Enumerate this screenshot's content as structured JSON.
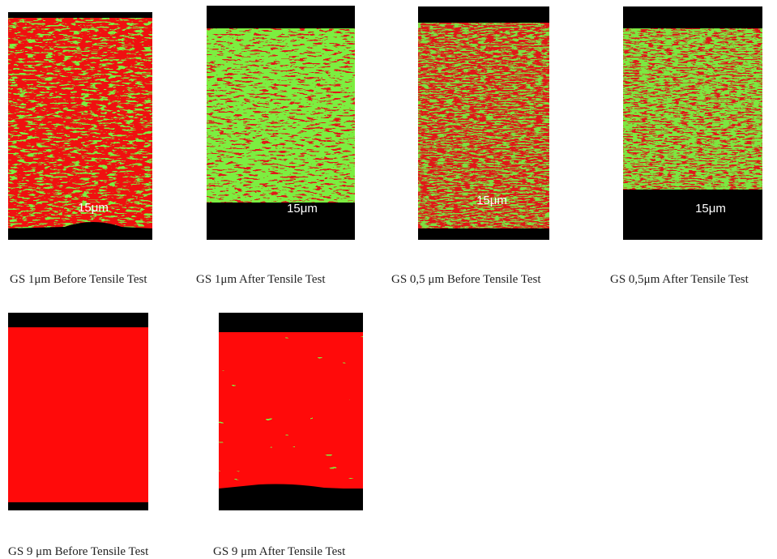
{
  "panels": [
    {
      "caption": "GS 1μm Before Tensile Test",
      "scale_label": "15μm"
    },
    {
      "caption": "GS 1μm After Tensile Test",
      "scale_label": "15μm"
    },
    {
      "caption": "GS 0,5 μm Before Tensile Test",
      "scale_label": "15μm"
    },
    {
      "caption": "GS 0,5μm After Tensile Test",
      "scale_label": "15μm"
    },
    {
      "caption": "GS 9 μm Before Tensile Test"
    },
    {
      "caption": "GS 9 μm After Tensile Test"
    }
  ]
}
